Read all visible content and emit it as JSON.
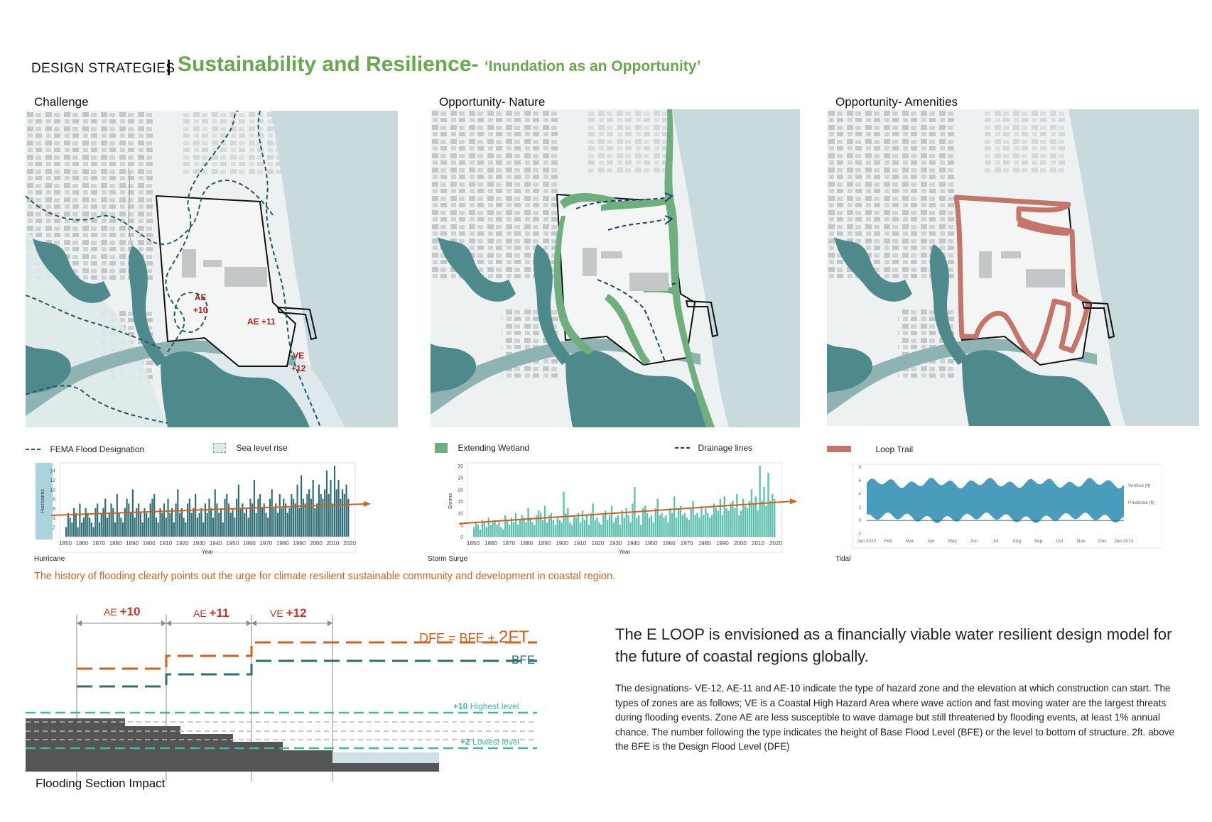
{
  "header": {
    "section": "DESIGN STRATEGIES",
    "title": "Sustainability and Resilience-",
    "subtitle": "‘Inundation as an Opportunity’"
  },
  "panels": {
    "challenge": {
      "title": "Challenge",
      "zones": [
        {
          "name": "AE",
          "value": "+10"
        },
        {
          "name": "AE +11",
          "value": ""
        },
        {
          "name": "VE",
          "value": "+12"
        }
      ],
      "legend": [
        "FEMA Flood Designation",
        "Sea level rise"
      ]
    },
    "nature": {
      "title": "Opportunity- Nature",
      "legend": [
        "Extending Wetland",
        "Drainage lines"
      ]
    },
    "amenities": {
      "title": "Opportunity- Amenities",
      "legend": [
        "Loop Trail"
      ]
    }
  },
  "colors": {
    "accent_green": "#6aa84f",
    "water": "#4e8a8c",
    "sea": "#c9dadd",
    "wetland": "#6fae7d",
    "trail": "#c4756a",
    "orange": "#d35f1f",
    "hurricane_bar": "#2f6e74",
    "surge_bar": "#5fc0b0",
    "tidal": "#4a9cbd"
  },
  "chart_data": [
    {
      "type": "bar",
      "name": "hurricane",
      "caption": "Hurricane",
      "xlabel": "Year",
      "ylabel": "Hurricanes",
      "x_start": 1851,
      "x_ticks": [
        "1850",
        "1860",
        "1870",
        "1880",
        "1890",
        "1900",
        "1910",
        "1920",
        "1930",
        "1940",
        "1950",
        "1960",
        "1970",
        "1980",
        "1990",
        "2000",
        "2010",
        "2020"
      ],
      "y_ticks": [
        "2",
        "4",
        "6",
        "8",
        "10",
        "12",
        "14"
      ],
      "ylim": [
        0,
        15
      ],
      "trend": [
        4.5,
        6.8
      ],
      "values": [
        2,
        5,
        4,
        3,
        6,
        5,
        2,
        7,
        3,
        4,
        6,
        5,
        4,
        3,
        2,
        6,
        7,
        3,
        5,
        6,
        8,
        4,
        5,
        7,
        6,
        3,
        9,
        5,
        4,
        3,
        6,
        8,
        7,
        5,
        10,
        4,
        6,
        7,
        5,
        3,
        6,
        5,
        4,
        7,
        8,
        9,
        4,
        3,
        6,
        5,
        7,
        4,
        8,
        5,
        6,
        3,
        7,
        10,
        5,
        6,
        4,
        3,
        7,
        8,
        5,
        6,
        9,
        4,
        5,
        6,
        3,
        7,
        5,
        8,
        6,
        4,
        10,
        7,
        5,
        6,
        3,
        8,
        9,
        7,
        5,
        6,
        4,
        8,
        11,
        6,
        7,
        5,
        6,
        4,
        8,
        7,
        12,
        5,
        8,
        9,
        6,
        7,
        5,
        4,
        8,
        10,
        6,
        7,
        5,
        9,
        6,
        8,
        7,
        5,
        6,
        9,
        8,
        7,
        11,
        6,
        13,
        8,
        7,
        9,
        10,
        8,
        12,
        6,
        7,
        11,
        9,
        8,
        10,
        14,
        9,
        12,
        7,
        15,
        10,
        12,
        8,
        10,
        9,
        11,
        8
      ]
    },
    {
      "type": "bar",
      "name": "storm-surge",
      "caption": "Storm Surge",
      "xlabel": "Year",
      "ylabel": "Storms",
      "x_start": 1851,
      "x_ticks": [
        "1850",
        "1860",
        "1870",
        "1880",
        "1890",
        "1900",
        "1910",
        "1920",
        "1930",
        "1940",
        "1950",
        "1960",
        "1970",
        "1980",
        "1990",
        "2000",
        "2010",
        "2020"
      ],
      "y_ticks": [
        "0",
        "5",
        "10",
        "15",
        "20",
        "25",
        "30"
      ],
      "ylim": [
        0,
        30
      ],
      "trend": [
        5.5,
        14.5
      ],
      "values": [
        4,
        6,
        5,
        3,
        7,
        6,
        4,
        8,
        5,
        6,
        7,
        5,
        6,
        4,
        3,
        9,
        7,
        5,
        8,
        6,
        10,
        5,
        7,
        9,
        8,
        6,
        12,
        8,
        6,
        5,
        9,
        11,
        10,
        7,
        13,
        6,
        9,
        10,
        7,
        5,
        8,
        7,
        6,
        19,
        10,
        12,
        6,
        5,
        9,
        8,
        10,
        6,
        11,
        7,
        9,
        5,
        10,
        14,
        7,
        8,
        6,
        5,
        10,
        11,
        7,
        9,
        13,
        6,
        8,
        9,
        5,
        11,
        8,
        12,
        9,
        6,
        14,
        21,
        8,
        9,
        5,
        12,
        13,
        10,
        8,
        9,
        6,
        12,
        16,
        9,
        10,
        8,
        9,
        6,
        12,
        10,
        17,
        8,
        12,
        13,
        9,
        10,
        8,
        7,
        12,
        15,
        9,
        10,
        8,
        13,
        9,
        12,
        10,
        8,
        9,
        14,
        12,
        11,
        16,
        9,
        17,
        12,
        11,
        14,
        15,
        12,
        18,
        9,
        11,
        16,
        13,
        12,
        15,
        20,
        14,
        17,
        11,
        30,
        15,
        21,
        13,
        27,
        15,
        18,
        16
      ]
    },
    {
      "type": "area",
      "name": "tidal",
      "caption": "Tidal",
      "series": [
        {
          "name": "Verified (ft)"
        },
        {
          "name": "Predicted (ft)"
        }
      ],
      "x_ticks": [
        "Jan 2022",
        "Feb",
        "Mar",
        "Apr",
        "May",
        "Jun",
        "Jul",
        "Aug",
        "Sep",
        "Oct",
        "Nov",
        "Dec",
        "Jan 2023"
      ],
      "y_ticks": [
        "-2",
        "0",
        "2",
        "4",
        "6",
        "8"
      ],
      "ylim": [
        -2,
        8
      ]
    },
    {
      "type": "line",
      "name": "flooding-section",
      "caption": "Flooding Section Impact",
      "zones": [
        {
          "name": "AE",
          "value": "+10"
        },
        {
          "name": "AE",
          "value": "+11"
        },
        {
          "name": "VE",
          "value": "+12"
        }
      ],
      "dfe_label": "DFE = BFE + ",
      "dfe_big": "2FT",
      "bfe_label": "BFE",
      "highest_level": {
        "value": "+10",
        "label": "Highest level"
      },
      "lowest_level": {
        "value": "+2",
        "label": "Lowest level"
      }
    }
  ],
  "note": "The history of flooding clearly points out the urge for climate resilient sustainable community and development in coastal region.",
  "statement": "The E LOOP is envisioned as a financially viable water resilient design model for the future of coastal regions globally.",
  "body": "The designations- VE-12, AE-11 and AE-10 indicate the type of hazard zone and the elevation at which construction can start. The types of zones are as follows; VE is a Coastal High Hazard Area where wave action and fast moving water are the largest threats during flooding events. Zone AE are less susceptible to wave damage but still threatened by flooding events, at least 1% annual chance. The number following the type indicates the height of Base Flood Level (BFE) or the level to bottom of structure. 2ft. above the BFE is the Design Flood Level (DFE)"
}
